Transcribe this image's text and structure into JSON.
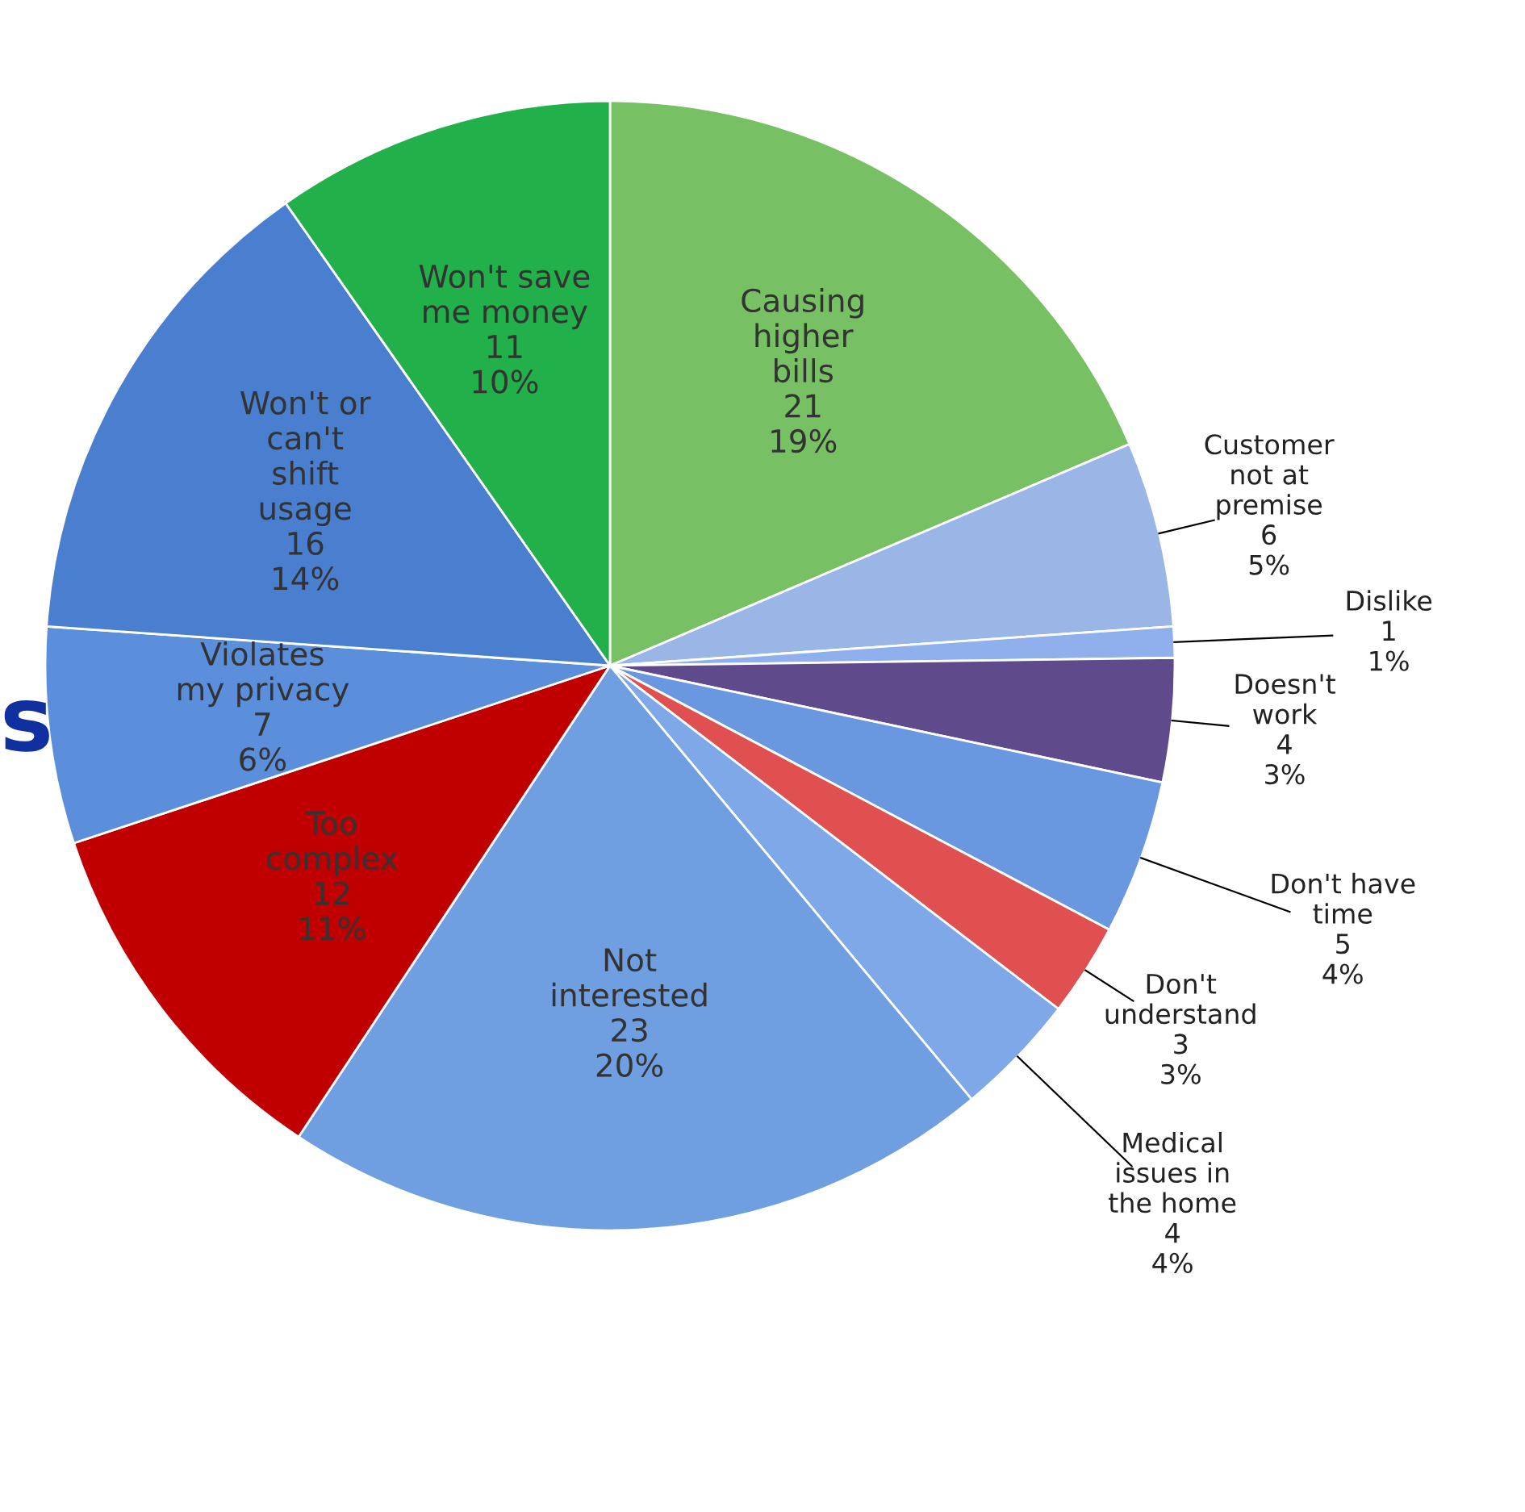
{
  "chart_data": {
    "type": "pie",
    "categories": [
      "Causing higher bills",
      "Customer not at premise",
      "Dislike",
      "Doesn't work",
      "Don't have time",
      "Don't understand",
      "Medical issues in the home",
      "Not interested",
      "Too complex",
      "Violates my privacy",
      "Won't or can't shift usage",
      "Won't save me money"
    ],
    "values": [
      21,
      6,
      1,
      4,
      5,
      3,
      4,
      23,
      12,
      7,
      16,
      11
    ],
    "value_labels": [
      "21\n19%",
      "6\n5%",
      "1\n1%",
      "4\n3%",
      "5\n4%",
      "3\n3%",
      "4\n4%",
      "23\n20%",
      "12\n11%",
      "7\n6%",
      "16\n14%",
      "11\n10%"
    ],
    "colors": [
      "#77c063",
      "#9ab6e6",
      "#8fb0ec",
      "#5f4a8b",
      "#6a98e0",
      "#e05050",
      "#7fa8e8",
      "#6f9fe0",
      "#c00000",
      "#5b8fdc",
      "#4a7fd0",
      "#22b04a"
    ],
    "annotations": [
      "s"
    ]
  }
}
